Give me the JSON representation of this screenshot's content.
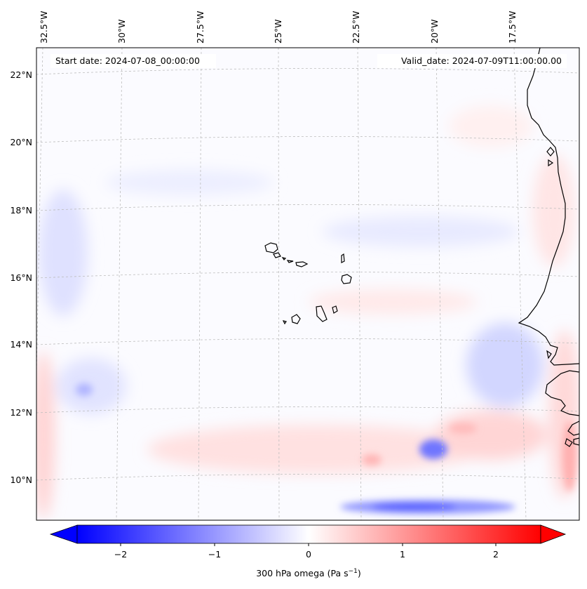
{
  "header": {
    "start_date": "Start date: 2024-07-08_00:00:00",
    "valid_date": "Valid_date: 2024-07-09T11:00:00.00"
  },
  "map": {
    "lon_labels": [
      "32.5°W",
      "30°W",
      "27.5°W",
      "25°W",
      "22.5°W",
      "20°W",
      "17.5°W"
    ],
    "lat_labels": [
      "22°N",
      "20°N",
      "18°N",
      "16°N",
      "14°N",
      "12°N",
      "10°N"
    ],
    "land_color": "#000000",
    "gridline_color": "#bdbdbd"
  },
  "colorbar": {
    "label": "300 hPa omega (Pa s",
    "label_exp": "−1",
    "label_close": ")",
    "ticks": [
      "−2",
      "−1",
      "0",
      "1",
      "2"
    ],
    "min_color": "#0000ff",
    "mid_color": "#ffffff",
    "max_color": "#ff0000"
  }
}
